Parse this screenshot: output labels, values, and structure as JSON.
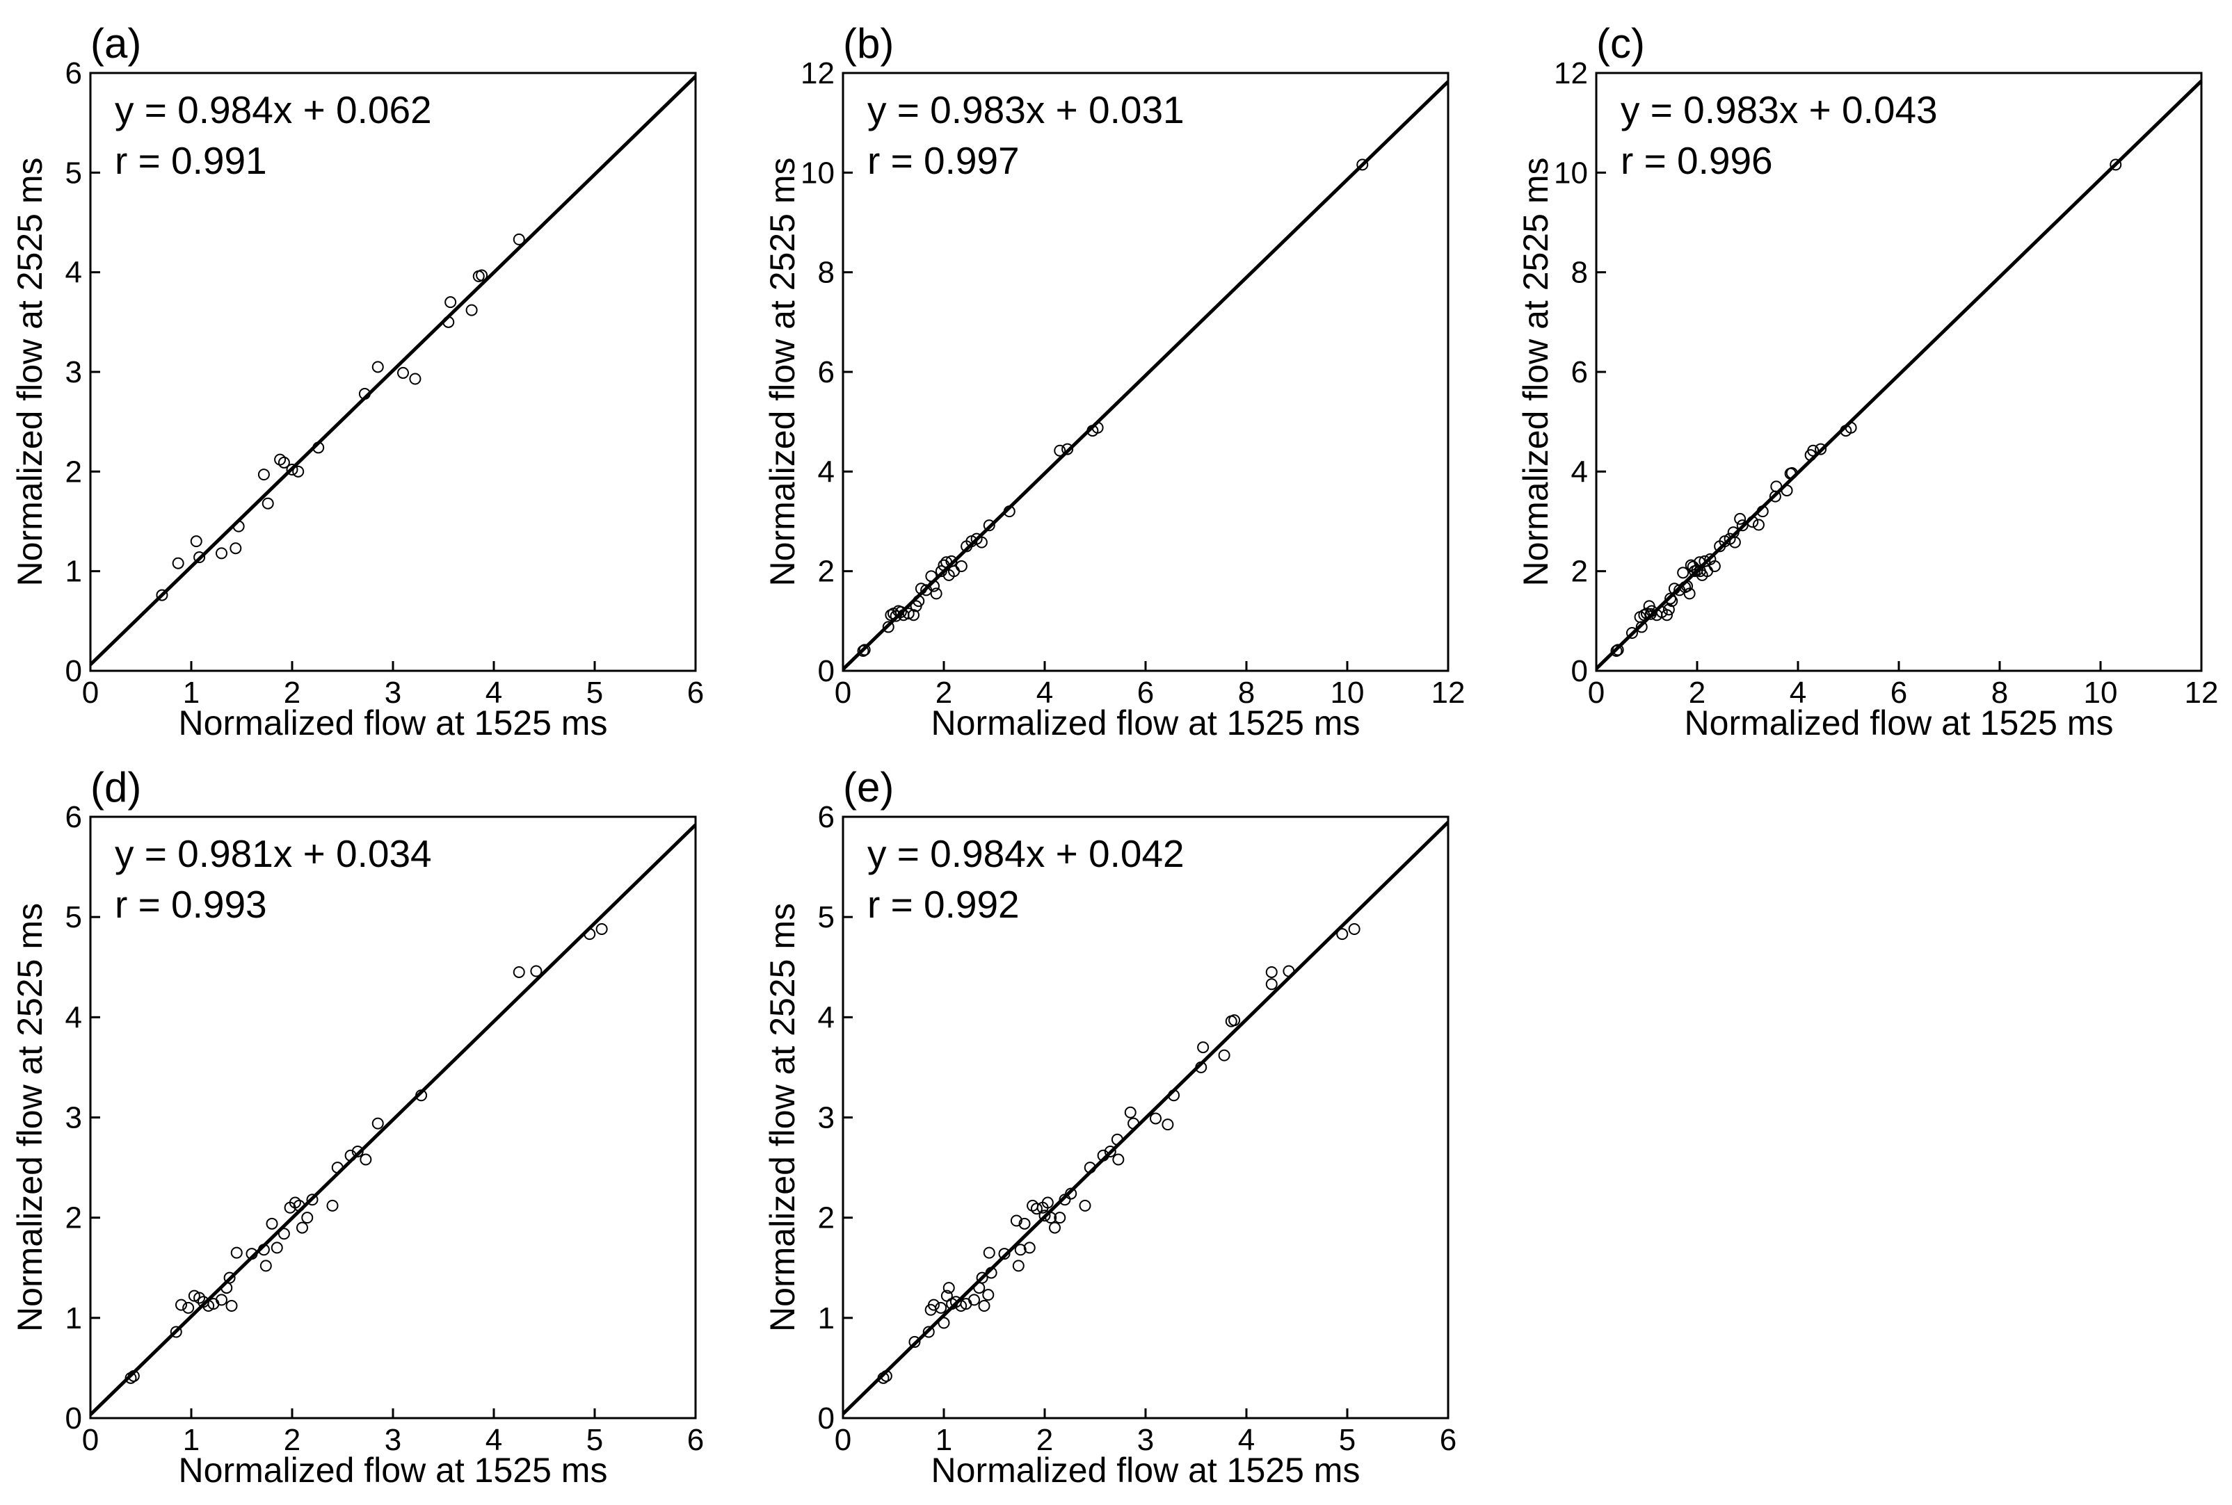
{
  "chart_data": [
    {
      "panel": "(a)",
      "type": "scatter",
      "xlabel": "Normalized flow at 1525 ms",
      "ylabel": "Normalized flow at 2525 ms",
      "xlim": [
        0,
        6
      ],
      "ylim": [
        0,
        6
      ],
      "xticks": [
        0,
        1,
        2,
        3,
        4,
        5,
        6
      ],
      "yticks": [
        0,
        1,
        2,
        3,
        4,
        5,
        6
      ],
      "fit": {
        "slope": 0.984,
        "intercept": 0.062
      },
      "equation": "y = 0.984x + 0.062",
      "r_text": "r = 0.991",
      "points": [
        [
          0.71,
          0.76
        ],
        [
          0.87,
          1.08
        ],
        [
          1.05,
          1.3
        ],
        [
          1.08,
          1.14
        ],
        [
          1.3,
          1.18
        ],
        [
          1.44,
          1.23
        ],
        [
          1.47,
          1.45
        ],
        [
          1.72,
          1.97
        ],
        [
          1.76,
          1.68
        ],
        [
          1.88,
          2.12
        ],
        [
          1.92,
          2.09
        ],
        [
          2.0,
          2.02
        ],
        [
          2.06,
          2.0
        ],
        [
          2.26,
          2.24
        ],
        [
          2.72,
          2.78
        ],
        [
          2.85,
          3.05
        ],
        [
          3.1,
          2.99
        ],
        [
          3.22,
          2.93
        ],
        [
          3.55,
          3.5
        ],
        [
          3.57,
          3.7
        ],
        [
          3.78,
          3.62
        ],
        [
          3.85,
          3.96
        ],
        [
          3.88,
          3.97
        ],
        [
          4.25,
          4.33
        ]
      ]
    },
    {
      "panel": "(b)",
      "type": "scatter",
      "xlabel": "Normalized flow at 1525 ms",
      "ylabel": "Normalized flow at 2525 ms",
      "xlim": [
        0,
        12
      ],
      "ylim": [
        0,
        12
      ],
      "xticks": [
        0,
        2,
        4,
        6,
        8,
        10,
        12
      ],
      "yticks": [
        0,
        2,
        4,
        6,
        8,
        10,
        12
      ],
      "fit": {
        "slope": 0.983,
        "intercept": 0.031
      },
      "equation": "y = 0.983x + 0.031",
      "r_text": "r = 0.997",
      "points": [
        [
          0.4,
          0.4
        ],
        [
          0.43,
          0.42
        ],
        [
          0.9,
          0.88
        ],
        [
          0.95,
          1.12
        ],
        [
          1.0,
          1.15
        ],
        [
          1.05,
          1.1
        ],
        [
          1.1,
          1.2
        ],
        [
          1.15,
          1.18
        ],
        [
          1.2,
          1.12
        ],
        [
          1.3,
          1.15
        ],
        [
          1.4,
          1.12
        ],
        [
          1.45,
          1.3
        ],
        [
          1.5,
          1.4
        ],
        [
          1.55,
          1.65
        ],
        [
          1.65,
          1.62
        ],
        [
          1.75,
          1.9
        ],
        [
          1.8,
          1.7
        ],
        [
          1.85,
          1.55
        ],
        [
          1.95,
          2.0
        ],
        [
          2.0,
          2.12
        ],
        [
          2.05,
          2.18
        ],
        [
          2.1,
          1.92
        ],
        [
          2.15,
          2.2
        ],
        [
          2.2,
          2.0
        ],
        [
          2.35,
          2.1
        ],
        [
          2.45,
          2.5
        ],
        [
          2.55,
          2.6
        ],
        [
          2.65,
          2.65
        ],
        [
          2.75,
          2.58
        ],
        [
          2.9,
          2.92
        ],
        [
          3.3,
          3.2
        ],
        [
          4.3,
          4.42
        ],
        [
          4.45,
          4.45
        ],
        [
          4.95,
          4.82
        ],
        [
          5.05,
          4.88
        ],
        [
          10.3,
          10.16
        ]
      ]
    },
    {
      "panel": "(c)",
      "type": "scatter",
      "xlabel": "Normalized flow at 1525 ms",
      "ylabel": "Normalized flow at 2525 ms",
      "xlim": [
        0,
        12
      ],
      "ylim": [
        0,
        12
      ],
      "xticks": [
        0,
        2,
        4,
        6,
        8,
        10,
        12
      ],
      "yticks": [
        0,
        2,
        4,
        6,
        8,
        10,
        12
      ],
      "fit": {
        "slope": 0.983,
        "intercept": 0.043
      },
      "equation": "y = 0.983x + 0.043",
      "r_text": "r = 0.996",
      "points": [
        [
          0.4,
          0.4
        ],
        [
          0.43,
          0.42
        ],
        [
          0.71,
          0.76
        ],
        [
          0.87,
          1.08
        ],
        [
          0.9,
          0.88
        ],
        [
          0.95,
          1.12
        ],
        [
          1.0,
          1.15
        ],
        [
          1.05,
          1.3
        ],
        [
          1.08,
          1.14
        ],
        [
          1.1,
          1.2
        ],
        [
          1.2,
          1.12
        ],
        [
          1.3,
          1.18
        ],
        [
          1.4,
          1.12
        ],
        [
          1.44,
          1.23
        ],
        [
          1.47,
          1.45
        ],
        [
          1.5,
          1.4
        ],
        [
          1.55,
          1.65
        ],
        [
          1.65,
          1.62
        ],
        [
          1.72,
          1.97
        ],
        [
          1.76,
          1.68
        ],
        [
          1.8,
          1.7
        ],
        [
          1.85,
          1.55
        ],
        [
          1.88,
          2.12
        ],
        [
          1.92,
          2.09
        ],
        [
          1.95,
          2.0
        ],
        [
          2.0,
          2.02
        ],
        [
          2.05,
          2.18
        ],
        [
          2.06,
          2.0
        ],
        [
          2.1,
          1.92
        ],
        [
          2.15,
          2.2
        ],
        [
          2.2,
          2.0
        ],
        [
          2.26,
          2.24
        ],
        [
          2.35,
          2.1
        ],
        [
          2.45,
          2.5
        ],
        [
          2.55,
          2.6
        ],
        [
          2.65,
          2.65
        ],
        [
          2.72,
          2.78
        ],
        [
          2.75,
          2.58
        ],
        [
          2.85,
          3.05
        ],
        [
          2.9,
          2.92
        ],
        [
          3.1,
          2.99
        ],
        [
          3.22,
          2.93
        ],
        [
          3.3,
          3.2
        ],
        [
          3.55,
          3.5
        ],
        [
          3.57,
          3.7
        ],
        [
          3.78,
          3.62
        ],
        [
          3.85,
          3.96
        ],
        [
          3.88,
          3.97
        ],
        [
          4.25,
          4.33
        ],
        [
          4.3,
          4.42
        ],
        [
          4.45,
          4.45
        ],
        [
          4.95,
          4.82
        ],
        [
          5.05,
          4.88
        ],
        [
          10.3,
          10.16
        ]
      ]
    },
    {
      "panel": "(d)",
      "type": "scatter",
      "xlabel": "Normalized flow at 1525 ms",
      "ylabel": "Normalized flow at 2525 ms",
      "xlim": [
        0,
        6
      ],
      "ylim": [
        0,
        6
      ],
      "xticks": [
        0,
        1,
        2,
        3,
        4,
        5,
        6
      ],
      "yticks": [
        0,
        1,
        2,
        3,
        4,
        5,
        6
      ],
      "fit": {
        "slope": 0.981,
        "intercept": 0.034
      },
      "equation": "y = 0.981x + 0.034",
      "r_text": "r = 0.993",
      "points": [
        [
          0.4,
          0.4
        ],
        [
          0.43,
          0.42
        ],
        [
          0.85,
          0.86
        ],
        [
          0.9,
          1.13
        ],
        [
          0.97,
          1.1
        ],
        [
          1.03,
          1.22
        ],
        [
          1.08,
          1.2
        ],
        [
          1.12,
          1.16
        ],
        [
          1.17,
          1.12
        ],
        [
          1.22,
          1.14
        ],
        [
          1.3,
          1.18
        ],
        [
          1.35,
          1.3
        ],
        [
          1.38,
          1.4
        ],
        [
          1.4,
          1.12
        ],
        [
          1.45,
          1.65
        ],
        [
          1.6,
          1.64
        ],
        [
          1.72,
          1.68
        ],
        [
          1.74,
          1.52
        ],
        [
          1.8,
          1.94
        ],
        [
          1.85,
          1.7
        ],
        [
          1.92,
          1.84
        ],
        [
          1.98,
          2.1
        ],
        [
          2.03,
          2.15
        ],
        [
          2.07,
          2.12
        ],
        [
          2.1,
          1.9
        ],
        [
          2.15,
          2.0
        ],
        [
          2.2,
          2.18
        ],
        [
          2.4,
          2.12
        ],
        [
          2.45,
          2.5
        ],
        [
          2.58,
          2.62
        ],
        [
          2.65,
          2.66
        ],
        [
          2.73,
          2.58
        ],
        [
          2.85,
          2.94
        ],
        [
          3.28,
          3.22
        ],
        [
          4.25,
          4.45
        ],
        [
          4.42,
          4.46
        ],
        [
          4.95,
          4.83
        ],
        [
          5.07,
          4.88
        ]
      ]
    },
    {
      "panel": "(e)",
      "type": "scatter",
      "xlabel": "Normalized flow at 1525 ms",
      "ylabel": "Normalized flow at 2525 ms",
      "xlim": [
        0,
        6
      ],
      "ylim": [
        0,
        6
      ],
      "xticks": [
        0,
        1,
        2,
        3,
        4,
        5,
        6
      ],
      "yticks": [
        0,
        1,
        2,
        3,
        4,
        5,
        6
      ],
      "fit": {
        "slope": 0.984,
        "intercept": 0.042
      },
      "equation": "y = 0.984x + 0.042",
      "r_text": "r = 0.992",
      "points": [
        [
          0.4,
          0.4
        ],
        [
          0.43,
          0.42
        ],
        [
          0.71,
          0.76
        ],
        [
          0.85,
          0.86
        ],
        [
          0.87,
          1.08
        ],
        [
          0.9,
          1.13
        ],
        [
          0.97,
          1.1
        ],
        [
          1.0,
          0.95
        ],
        [
          1.03,
          1.22
        ],
        [
          1.05,
          1.3
        ],
        [
          1.08,
          1.14
        ],
        [
          1.12,
          1.16
        ],
        [
          1.17,
          1.12
        ],
        [
          1.22,
          1.14
        ],
        [
          1.3,
          1.18
        ],
        [
          1.35,
          1.3
        ],
        [
          1.38,
          1.4
        ],
        [
          1.4,
          1.12
        ],
        [
          1.44,
          1.23
        ],
        [
          1.45,
          1.65
        ],
        [
          1.47,
          1.45
        ],
        [
          1.6,
          1.64
        ],
        [
          1.72,
          1.97
        ],
        [
          1.74,
          1.52
        ],
        [
          1.76,
          1.68
        ],
        [
          1.8,
          1.94
        ],
        [
          1.85,
          1.7
        ],
        [
          1.88,
          2.12
        ],
        [
          1.92,
          2.09
        ],
        [
          1.98,
          2.1
        ],
        [
          2.0,
          2.02
        ],
        [
          2.03,
          2.15
        ],
        [
          2.06,
          2.0
        ],
        [
          2.1,
          1.9
        ],
        [
          2.15,
          2.0
        ],
        [
          2.2,
          2.18
        ],
        [
          2.26,
          2.24
        ],
        [
          2.4,
          2.12
        ],
        [
          2.45,
          2.5
        ],
        [
          2.58,
          2.62
        ],
        [
          2.65,
          2.66
        ],
        [
          2.72,
          2.78
        ],
        [
          2.73,
          2.58
        ],
        [
          2.85,
          3.05
        ],
        [
          2.88,
          2.94
        ],
        [
          3.1,
          2.99
        ],
        [
          3.22,
          2.93
        ],
        [
          3.28,
          3.22
        ],
        [
          3.55,
          3.5
        ],
        [
          3.57,
          3.7
        ],
        [
          3.78,
          3.62
        ],
        [
          3.85,
          3.96
        ],
        [
          3.88,
          3.97
        ],
        [
          4.25,
          4.33
        ],
        [
          4.25,
          4.45
        ],
        [
          4.42,
          4.46
        ],
        [
          4.95,
          4.83
        ],
        [
          5.07,
          4.88
        ]
      ]
    }
  ]
}
